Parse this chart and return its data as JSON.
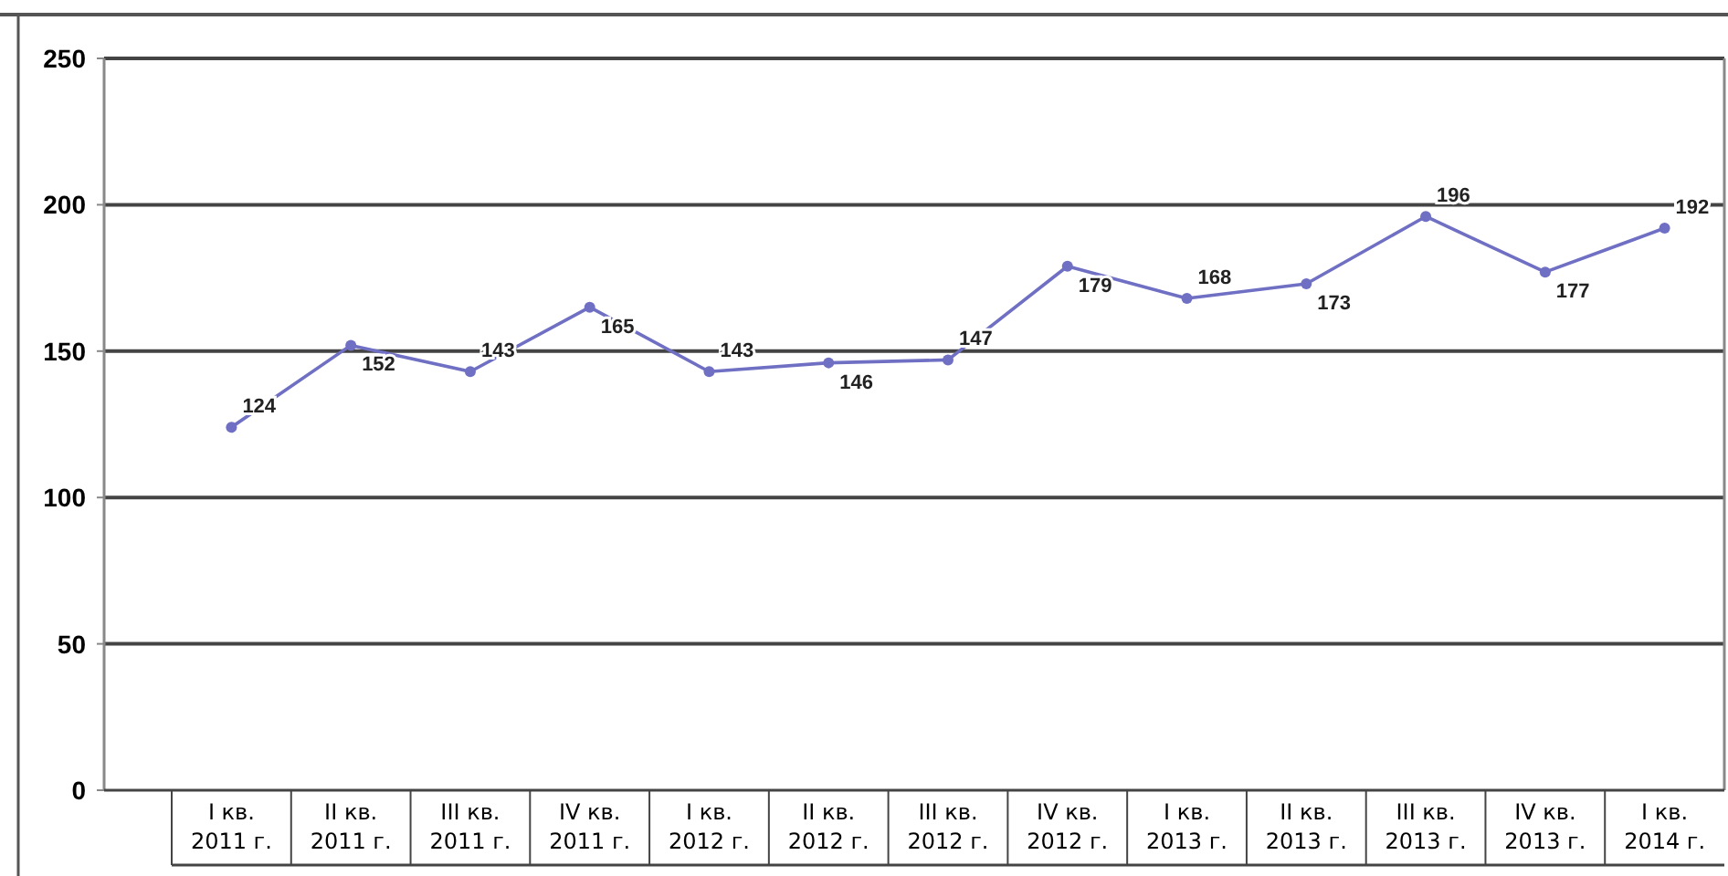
{
  "chart_data": {
    "type": "line",
    "categories": [
      "I кв.\n2011 г.",
      "II кв.\n2011 г.",
      "III кв.\n2011 г.",
      "IV кв.\n2011 г.",
      "I кв.\n2012 г.",
      "II кв.\n2012 г.",
      "III кв.\n2012 г.",
      "IV кв.\n2012 г.",
      "I кв.\n2013 г.",
      "II кв.\n2013 г.",
      "III кв.\n2013 г.",
      "IV кв.\n2013 г.",
      "I кв.\n2014 г."
    ],
    "series": [
      {
        "color": "#6f6fc4",
        "values": [
          124,
          152,
          143,
          165,
          143,
          146,
          147,
          179,
          168,
          173,
          196,
          177,
          192
        ]
      }
    ],
    "ylim": [
      0,
      250
    ],
    "yticks": [
      0,
      50,
      100,
      150,
      200,
      250
    ],
    "grid": "y",
    "marker": "circle",
    "line_style": "solid",
    "data_labels": true
  }
}
